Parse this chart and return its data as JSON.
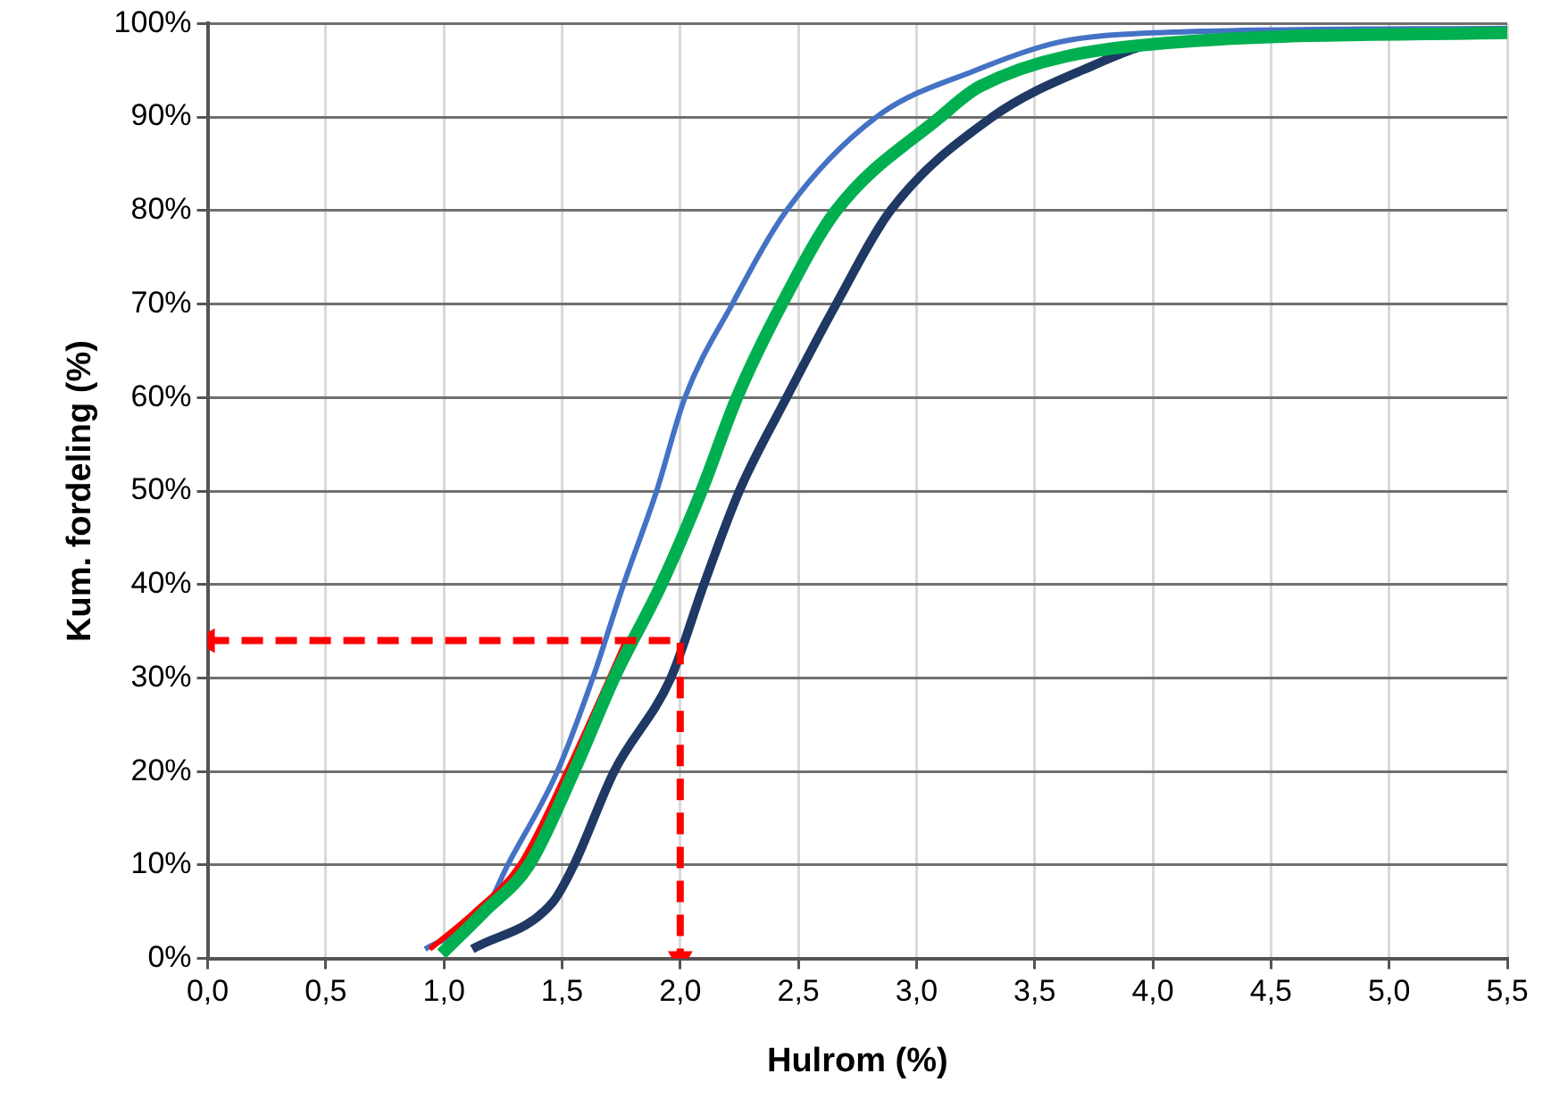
{
  "chart_data": {
    "type": "line",
    "xlabel": "Hulrom (%)",
    "ylabel": "Kum. fordeling (%)",
    "xlim": [
      0,
      5.5
    ],
    "ylim": [
      0,
      100
    ],
    "xticks": [
      {
        "value": 0,
        "label": "0,0"
      },
      {
        "value": 0.5,
        "label": "0,5"
      },
      {
        "value": 1,
        "label": "1,0"
      },
      {
        "value": 1.5,
        "label": "1,5"
      },
      {
        "value": 2,
        "label": "2,0"
      },
      {
        "value": 2.5,
        "label": "2,5"
      },
      {
        "value": 3,
        "label": "3,0"
      },
      {
        "value": 3.5,
        "label": "3,5"
      },
      {
        "value": 4,
        "label": "4,0"
      },
      {
        "value": 4.5,
        "label": "4,5"
      },
      {
        "value": 5,
        "label": "5,0"
      },
      {
        "value": 5.5,
        "label": "5,5"
      }
    ],
    "yticks": [
      {
        "value": 0,
        "label": "0%"
      },
      {
        "value": 10,
        "label": "10%"
      },
      {
        "value": 20,
        "label": "20%"
      },
      {
        "value": 30,
        "label": "30%"
      },
      {
        "value": 40,
        "label": "40%"
      },
      {
        "value": 50,
        "label": "50%"
      },
      {
        "value": 60,
        "label": "60%"
      },
      {
        "value": 70,
        "label": "70%"
      },
      {
        "value": 80,
        "label": "80%"
      },
      {
        "value": 90,
        "label": "90%"
      },
      {
        "value": 100,
        "label": "100%"
      }
    ],
    "grid": true,
    "legend": false,
    "marker": "none",
    "series": [
      {
        "color": "#4472c4",
        "x": [
          0.92,
          1.17,
          1.27,
          1.48,
          1.63,
          1.76,
          1.9,
          2.02,
          2.22,
          2.45,
          2.83,
          3.25,
          3.6,
          4.0,
          5.5
        ],
        "values": [
          1,
          5,
          10,
          20,
          30,
          40,
          50,
          60,
          70,
          80,
          90,
          95,
          98,
          99,
          99.5
        ]
      },
      {
        "color": "#1f3864",
        "x": [
          1.12,
          1.46,
          1.55,
          1.72,
          1.96,
          2.1,
          2.25,
          2.45,
          2.66,
          2.89,
          3.32,
          3.7,
          4.05,
          5.5
        ],
        "values": [
          1,
          6,
          10,
          20,
          30,
          40,
          50,
          60,
          70,
          80,
          90,
          95,
          98,
          99
        ]
      },
      {
        "color": "#ff0000",
        "x": [
          0.94,
          1.13,
          1.32,
          1.52,
          1.7,
          1.77
        ],
        "values": [
          1,
          5,
          10,
          20,
          30,
          34
        ]
      },
      {
        "color": "#00b050",
        "x": [
          0.99,
          1.17,
          1.36,
          1.55,
          1.72,
          1.92,
          2.09,
          2.24,
          2.43,
          2.66,
          3.1,
          3.27,
          4.0,
          5.5
        ],
        "values": [
          0.5,
          5,
          10,
          20,
          30,
          40,
          50,
          60,
          70,
          80,
          90,
          93.3,
          97.8,
          99
        ]
      },
      {
        "color": "#ff0000",
        "line_style": "dashed",
        "marker": "triangle",
        "x": [
          0,
          2,
          2
        ],
        "values": [
          34,
          34,
          0
        ]
      }
    ]
  }
}
